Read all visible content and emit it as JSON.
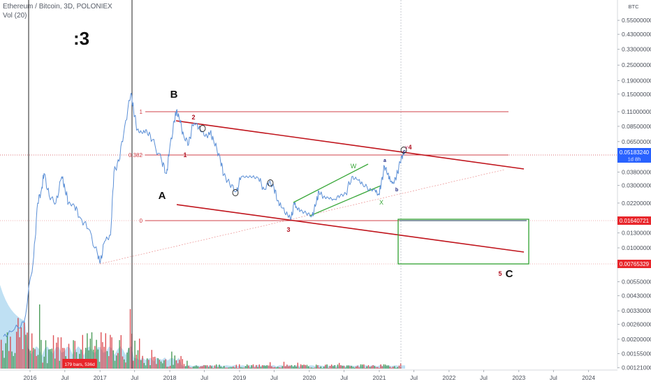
{
  "header": {
    "title": "Ethereum / Bitcoin, 3D, POLONIEX",
    "volume": "Vol (20)"
  },
  "scale_label": "BTC",
  "face_text": ":3",
  "colors": {
    "price_line": "#5b8fd6",
    "channel": "#c0141c",
    "fib": "#d04048",
    "wxy": "#3aa83a",
    "target_box": "#2fa02f",
    "badge_red": "#e8262b",
    "badge_blue": "#2962ff",
    "vol_green": "#2e8b3d",
    "vol_red": "#d8343a",
    "vol_area": "#8ac6ea"
  },
  "chart_data": {
    "type": "line",
    "y_scale": "log",
    "y_ticks": [
      "0.55000000",
      "0.43000000",
      "0.33000000",
      "0.25000000",
      "0.19000000",
      "0.15000000",
      "0.11000000",
      "0.08500000",
      "0.06500000",
      "0.03800000",
      "0.03000000",
      "0.02200000",
      "0.01300000",
      "0.01000000",
      "0.00550000",
      "0.00430000",
      "0.00330000",
      "0.00260000",
      "0.00200000",
      "0.00155000",
      "0.00121000"
    ],
    "x_ticks": [
      "2016",
      "Jul",
      "2017",
      "Jul",
      "2018",
      "Jul",
      "2019",
      "Jul",
      "2020",
      "Jul",
      "2021",
      "Jul",
      "2022",
      "Jul",
      "2023",
      "Jul",
      "2024"
    ],
    "price_badge": {
      "value": "0.05183240",
      "countdown": "1d 8h"
    },
    "level_badges": [
      "0.01640721",
      "0.00765329"
    ],
    "series": [
      {
        "values": [
          [
            "2015-08-15",
            0.0021
          ],
          [
            "2015-10-01",
            0.0023
          ],
          [
            "2015-12-01",
            0.0027
          ],
          [
            "2016-01-20",
            0.0085
          ],
          [
            "2016-02-10",
            0.022
          ],
          [
            "2016-03-01",
            0.028
          ],
          [
            "2016-03-14",
            0.037
          ],
          [
            "2016-04-10",
            0.025
          ],
          [
            "2016-05-15",
            0.022
          ],
          [
            "2016-06-15",
            0.035
          ],
          [
            "2016-07-01",
            0.029
          ],
          [
            "2016-07-20",
            0.022
          ],
          [
            "2016-08-20",
            0.021
          ],
          [
            "2016-09-20",
            0.017
          ],
          [
            "2016-11-01",
            0.014
          ],
          [
            "2016-12-20",
            0.0088
          ],
          [
            "2017-01-03",
            0.0078
          ],
          [
            "2017-01-25",
            0.0112
          ],
          [
            "2017-02-25",
            0.0125
          ],
          [
            "2017-03-15",
            0.038
          ],
          [
            "2017-04-10",
            0.046
          ],
          [
            "2017-05-10",
            0.085
          ],
          [
            "2017-06-12",
            0.152
          ],
          [
            "2017-06-25",
            0.115
          ],
          [
            "2017-07-15",
            0.08
          ],
          [
            "2017-08-10",
            0.075
          ],
          [
            "2017-09-01",
            0.08
          ],
          [
            "2017-10-01",
            0.067
          ],
          [
            "2017-11-20",
            0.046
          ],
          [
            "2017-12-15",
            0.037
          ],
          [
            "2017-12-30",
            0.055
          ],
          [
            "2018-01-25",
            0.094
          ],
          [
            "2018-02-05",
            0.112
          ],
          [
            "2018-02-20",
            0.097
          ],
          [
            "2018-03-15",
            0.072
          ],
          [
            "2018-04-10",
            0.062
          ],
          [
            "2018-05-01",
            0.087
          ],
          [
            "2018-05-20",
            0.09
          ],
          [
            "2018-06-15",
            0.077
          ],
          [
            "2018-07-15",
            0.071
          ],
          [
            "2018-08-01",
            0.077
          ],
          [
            "2018-08-20",
            0.064
          ],
          [
            "2018-09-20",
            0.05
          ],
          [
            "2018-10-10",
            0.036
          ],
          [
            "2018-11-10",
            0.031
          ],
          [
            "2018-12-15",
            0.027
          ],
          [
            "2019-01-10",
            0.035
          ],
          [
            "2019-02-10",
            0.035
          ],
          [
            "2019-03-10",
            0.035
          ],
          [
            "2019-04-10",
            0.034
          ],
          [
            "2019-05-10",
            0.028
          ],
          [
            "2019-06-05",
            0.0318
          ],
          [
            "2019-06-30",
            0.029
          ],
          [
            "2019-07-20",
            0.023
          ],
          [
            "2019-08-10",
            0.0202
          ],
          [
            "2019-09-10",
            0.0178
          ],
          [
            "2019-09-28",
            0.0168
          ],
          [
            "2019-10-15",
            0.022
          ],
          [
            "2019-10-25",
            0.0205
          ],
          [
            "2019-11-15",
            0.0192
          ],
          [
            "2019-12-15",
            0.0185
          ],
          [
            "2020-01-15",
            0.0175
          ],
          [
            "2020-02-05",
            0.0215
          ],
          [
            "2020-02-20",
            0.027
          ],
          [
            "2020-03-15",
            0.0245
          ],
          [
            "2020-04-10",
            0.024
          ],
          [
            "2020-05-10",
            0.0235
          ],
          [
            "2020-06-10",
            0.025
          ],
          [
            "2020-07-10",
            0.026
          ],
          [
            "2020-08-10",
            0.035
          ],
          [
            "2020-09-10",
            0.033
          ],
          [
            "2020-10-05",
            0.031
          ],
          [
            "2020-11-10",
            0.028
          ],
          [
            "2020-12-10",
            0.0275
          ],
          [
            "2020-12-28",
            0.0255
          ],
          [
            "2021-01-10",
            0.03
          ],
          [
            "2021-01-28",
            0.042
          ],
          [
            "2021-02-15",
            0.037
          ],
          [
            "2021-03-01",
            0.032
          ],
          [
            "2021-03-15",
            0.0315
          ],
          [
            "2021-04-01",
            0.035
          ],
          [
            "2021-04-20",
            0.045
          ],
          [
            "2021-05-08",
            0.054
          ],
          [
            "2021-05-10",
            0.0518
          ]
        ]
      }
    ]
  },
  "annotations": {
    "waves": {
      "A": "A",
      "B": "B",
      "C": "C",
      "n1": "1",
      "n2": "2",
      "n3": "3",
      "n4": "4",
      "n5": "5"
    },
    "sub_waves": {
      "a": "a",
      "b": "b",
      "c": "c",
      "v": "v",
      "w": "W",
      "x": "X"
    },
    "fib_levels": {
      "one": "1",
      "half": "0.382",
      "zero": "0"
    },
    "bars_badge": "179 bars, 536d"
  }
}
